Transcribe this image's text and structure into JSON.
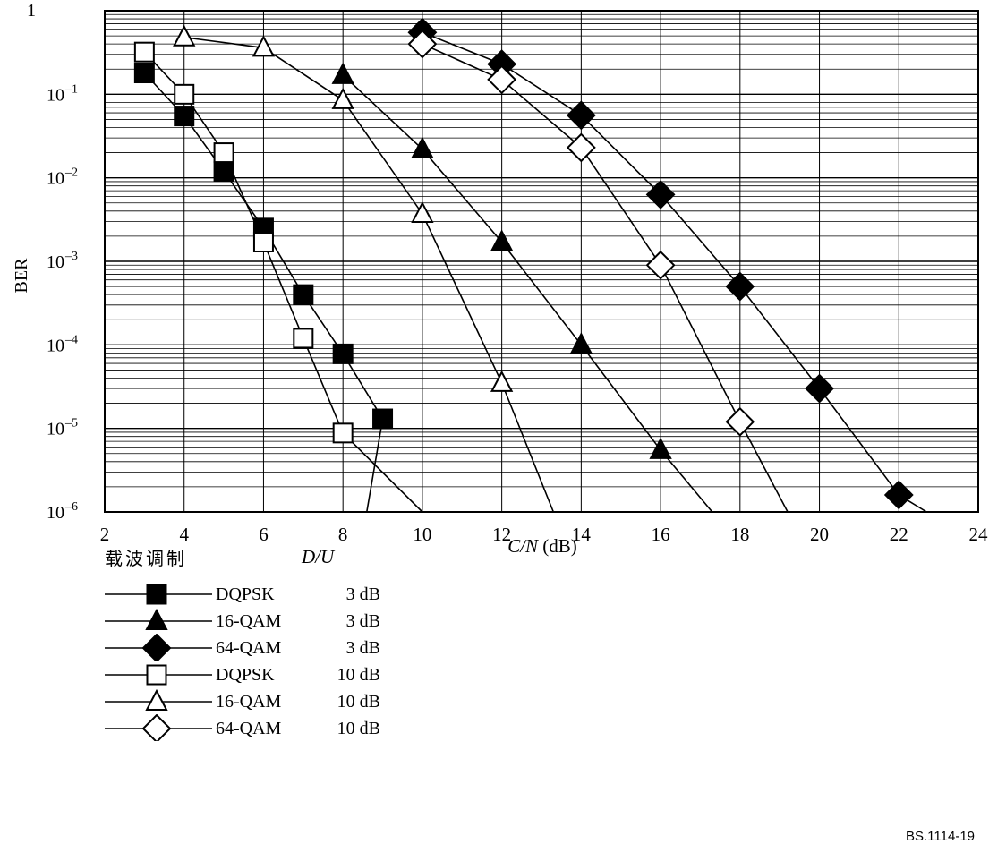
{
  "chart_data": {
    "type": "line",
    "xlabel_italic": "C/N",
    "xlabel_unit": " (dB)",
    "ylabel": "BER",
    "xlim": [
      2,
      24
    ],
    "ylim": [
      1e-06,
      1
    ],
    "yscale": "log",
    "grid": true,
    "x_ticks": [
      "2",
      "4",
      "6",
      "8",
      "10",
      "12",
      "14",
      "16",
      "18",
      "20",
      "22",
      "24"
    ],
    "y_ticks": [
      {
        "base": "1",
        "exp": ""
      },
      {
        "base": "10",
        "exp": "–1"
      },
      {
        "base": "10",
        "exp": "–2"
      },
      {
        "base": "10",
        "exp": "–3"
      },
      {
        "base": "10",
        "exp": "–4"
      },
      {
        "base": "10",
        "exp": "–5"
      },
      {
        "base": "10",
        "exp": "–6"
      }
    ],
    "series": [
      {
        "name": "DQPSK",
        "du": "3 dB",
        "marker": "square",
        "filled": true,
        "points": [
          [
            3,
            0.18
          ],
          [
            4,
            0.055
          ],
          [
            5,
            0.012
          ],
          [
            6,
            0.0025
          ],
          [
            7,
            0.0004
          ],
          [
            8,
            7.8e-05
          ],
          [
            9,
            1.3e-05
          ]
        ],
        "tail": [
          8.6,
          1e-06
        ]
      },
      {
        "name": "16-QAM",
        "du": "3 dB",
        "marker": "triangle",
        "filled": true,
        "points": [
          [
            8,
            0.17
          ],
          [
            10,
            0.022
          ],
          [
            12,
            0.0017
          ],
          [
            14,
            0.0001
          ],
          [
            16,
            5.5e-06
          ]
        ],
        "tail": [
          17.3,
          1e-06
        ]
      },
      {
        "name": "64-QAM",
        "du": "3 dB",
        "marker": "diamond",
        "filled": true,
        "points": [
          [
            10,
            0.55
          ],
          [
            12,
            0.23
          ],
          [
            14,
            0.056
          ],
          [
            16,
            0.0063
          ],
          [
            18,
            0.0005
          ],
          [
            20,
            3e-05
          ],
          [
            22,
            1.6e-06
          ]
        ],
        "tail": [
          22.7,
          1e-06
        ]
      },
      {
        "name": "DQPSK",
        "du": "10 dB",
        "marker": "square",
        "filled": false,
        "points": [
          [
            3,
            0.32
          ],
          [
            4,
            0.1
          ],
          [
            5,
            0.02
          ],
          [
            6,
            0.0017
          ],
          [
            7,
            0.00012
          ],
          [
            8,
            8.8e-06
          ]
        ],
        "tail": [
          10,
          1e-06
        ]
      },
      {
        "name": "16-QAM",
        "du": "10 dB",
        "marker": "triangle",
        "filled": false,
        "points": [
          [
            4,
            0.48
          ],
          [
            6,
            0.36
          ],
          [
            8,
            0.085
          ],
          [
            10,
            0.0037
          ],
          [
            12,
            3.5e-05
          ]
        ],
        "tail": [
          13.3,
          1e-06
        ]
      },
      {
        "name": "64-QAM",
        "du": "10 dB",
        "marker": "diamond",
        "filled": false,
        "points": [
          [
            10,
            0.4
          ],
          [
            12,
            0.15
          ],
          [
            14,
            0.023
          ],
          [
            16,
            0.0009
          ],
          [
            18,
            1.2e-05
          ]
        ],
        "tail": [
          19.2,
          1e-06
        ]
      }
    ]
  },
  "legend": {
    "header_modulation": "载波调制",
    "header_du": "D/U"
  },
  "source_tag": "BS.1114-19"
}
